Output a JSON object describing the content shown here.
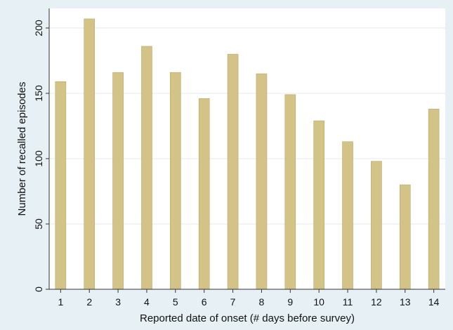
{
  "chart_data": {
    "type": "bar",
    "title": "",
    "xlabel": "Reported date of onset (# days before survey)",
    "ylabel": "Number of recalled episodes",
    "x": [
      1,
      2,
      3,
      4,
      5,
      6,
      7,
      8,
      9,
      10,
      11,
      12,
      13,
      14
    ],
    "values": [
      159,
      207,
      166,
      186,
      166,
      146,
      180,
      165,
      149,
      129,
      113,
      98,
      80,
      138
    ],
    "xlim": [
      0.6,
      14.4
    ],
    "ylim": [
      0,
      215
    ],
    "yticks": [
      0,
      50,
      100,
      150,
      200
    ],
    "xticks": [
      1,
      2,
      3,
      4,
      5,
      6,
      7,
      8,
      9,
      10,
      11,
      12,
      13,
      14
    ],
    "grid": true,
    "legend": "none",
    "colors": {
      "outer_background": "#e7f0f4",
      "plot_background": "#ffffff",
      "gridline": "#e6eef2",
      "bar_fill": "#d3c387",
      "bar_stroke": "#b8a86a",
      "axis": "#333333"
    }
  }
}
